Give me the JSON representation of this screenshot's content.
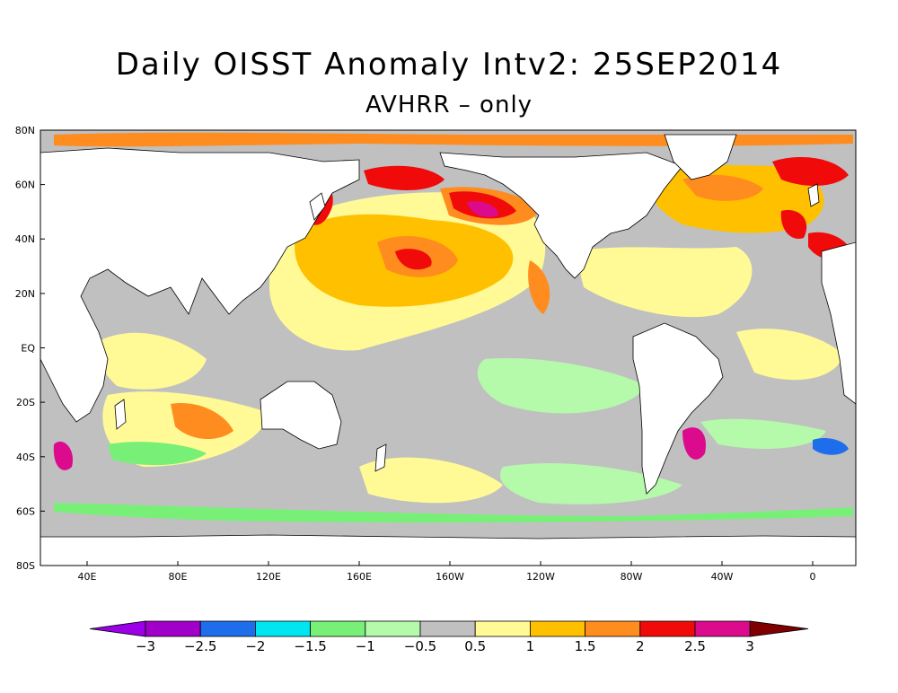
{
  "title": "Daily OISST Anomaly Intv2: 25SEP2014",
  "subtitle": "AVHRR – only",
  "lat_labels": [
    "80N",
    "60N",
    "40N",
    "20N",
    "EQ",
    "20S",
    "40S",
    "60S",
    "80S"
  ],
  "lon_labels": [
    "40E",
    "80E",
    "120E",
    "160E",
    "160W",
    "120W",
    "80W",
    "40W",
    "0"
  ],
  "colorbar": {
    "labels": [
      "−3",
      "−2.5",
      "−2",
      "−1.5",
      "−1",
      "−0.5",
      "0.5",
      "1",
      "1.5",
      "2",
      "2.5",
      "3"
    ],
    "colors": [
      "#9b00e6",
      "#a000c8",
      "#1e6eeb",
      "#00e6f0",
      "#78f078",
      "#b4faaa",
      "#c0c0c0",
      "#fffa96",
      "#ffc000",
      "#ff8c1e",
      "#f00a0a",
      "#dc0a8c",
      "#800000"
    ]
  },
  "colors": {
    "land": "#ffffff",
    "ice": "#c0c0c0",
    "neutral": "#c0c0c0"
  }
}
